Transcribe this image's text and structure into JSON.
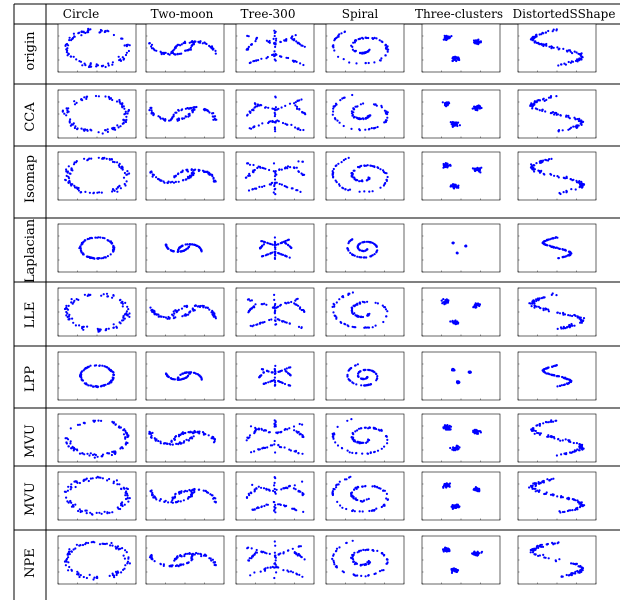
{
  "figure": {
    "columns": [
      "Circle",
      "Two-moon",
      "Tree-300",
      "Spiral",
      "Three-clusters",
      "DistortedSShape"
    ],
    "rows": [
      "origin",
      "CCA",
      "Isomap",
      "Laplacian",
      "LLE",
      "LPP",
      "MVU",
      "MVU",
      "NPE"
    ],
    "marker_color": "#0000ff"
  },
  "chart_data": {
    "type": "scatter",
    "description_kind": "small-multiples grid",
    "columns": [
      "Circle",
      "Two-moon",
      "Tree-300",
      "Spiral",
      "Three-clusters",
      "DistortedSShape"
    ],
    "rows": [
      "origin",
      "CCA",
      "Isomap",
      "Laplacian",
      "LLE",
      "LPP",
      "MVU",
      "MVU",
      "NPE"
    ],
    "shapes": {
      "Circle": "ring",
      "Two-moon": "two interleaved arcs",
      "Tree-300": "branching tree",
      "Spiral": "spiral",
      "Three-clusters": "three clusters",
      "DistortedSShape": "S-shaped curve"
    },
    "marker_color": "#0000ff",
    "grid": false,
    "legend": "none"
  }
}
